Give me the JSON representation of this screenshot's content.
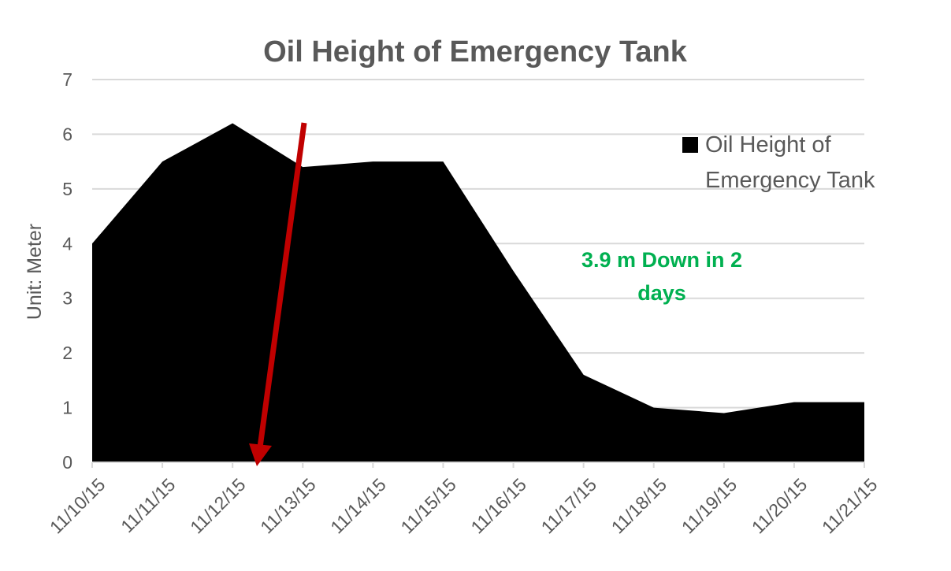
{
  "chart_data": {
    "type": "area",
    "title": "Oil Height of Emergency Tank",
    "xlabel": "",
    "ylabel": "Unit: Meter",
    "categories": [
      "11/10/15",
      "11/11/15",
      "11/12/15",
      "11/13/15",
      "11/14/15",
      "11/15/15",
      "11/16/15",
      "11/17/15",
      "11/18/15",
      "11/19/15",
      "11/20/15",
      "11/21/15"
    ],
    "series": [
      {
        "name": "Oil Height of Emergency Tank",
        "values": [
          4.0,
          5.5,
          6.2,
          5.4,
          5.5,
          5.5,
          3.5,
          1.6,
          1.0,
          0.9,
          1.1,
          1.1
        ],
        "color": "#000000"
      }
    ],
    "ylim": [
      0,
      7
    ],
    "yticks": [
      "0",
      "1",
      "2",
      "3",
      "4",
      "5",
      "6",
      "7"
    ],
    "grid": true,
    "legend_position": "right",
    "legend_lines": [
      "Oil Height of",
      "Emergency Tank"
    ],
    "annotation": {
      "lines": [
        "3.9 m Down in 2",
        "days"
      ],
      "color": "#00b050"
    },
    "arrow_color": "#c00000"
  }
}
